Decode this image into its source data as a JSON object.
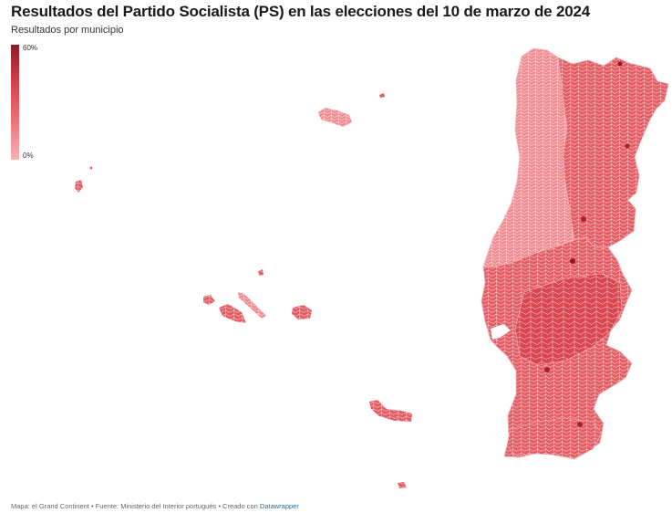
{
  "title": "Resultados del Partido Socialista (PS) en las elecciones del 10 de marzo de 2024",
  "subtitle": "Resultados por municipio",
  "legend": {
    "max_label": "60%",
    "min_label": "0%",
    "range": [
      0,
      60
    ],
    "colors": [
      "#f8b3b7",
      "#ef6f76",
      "#d9434f",
      "#8e1a24"
    ]
  },
  "footer": {
    "text": "Mapa: el Grand Continent • Fuente: Ministerio del Interior portugués • Creado con ",
    "link": "Datawrapper"
  },
  "map": {
    "regions": [
      "Portugal continental",
      "Azores",
      "Madeira"
    ],
    "fill_color": "#e05a62",
    "stroke_color": "#f6c9cc"
  }
}
